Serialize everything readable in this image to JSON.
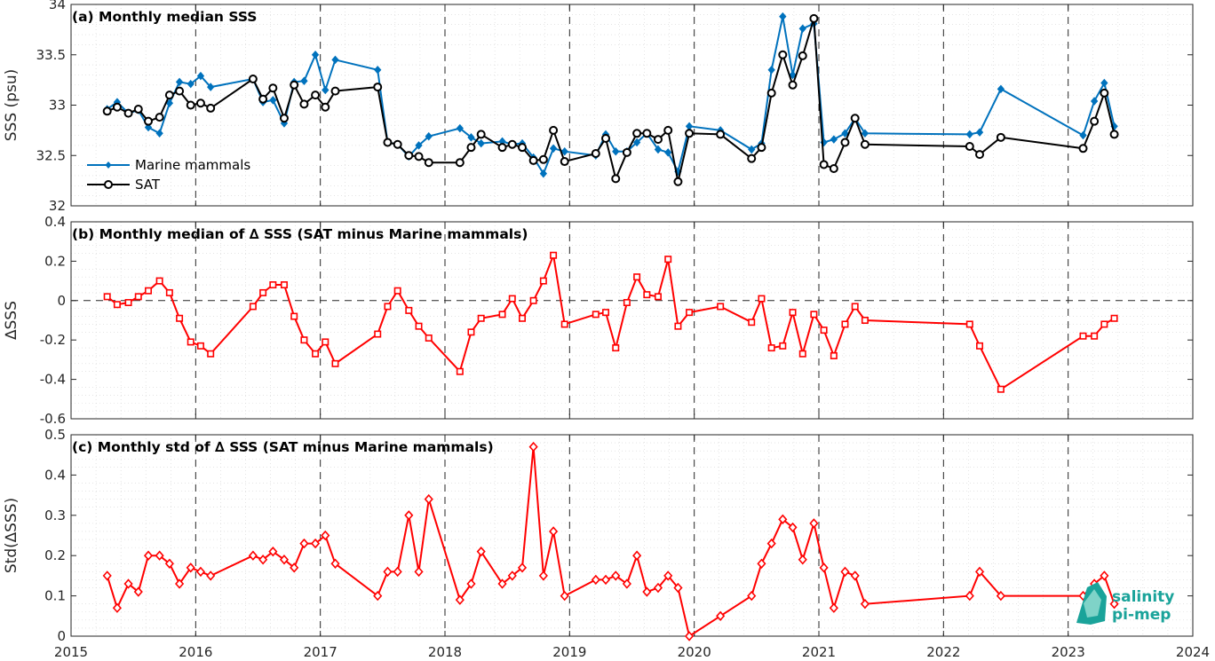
{
  "chart_data": [
    {
      "type": "line",
      "title": "(a) Monthly median SSS",
      "ylabel": "SSS (psu)",
      "xlim": [
        2015,
        2024
      ],
      "ylim": [
        32,
        34
      ],
      "xticks": [
        "2015",
        "2016",
        "2017",
        "2018",
        "2019",
        "2020",
        "2021",
        "2022",
        "2023",
        "2024"
      ],
      "yticks": [
        "32",
        "32.5",
        "33",
        "33.5",
        "34"
      ],
      "grid": true,
      "legend": "left",
      "x": [
        2015.29,
        2015.37,
        2015.46,
        2015.54,
        2015.62,
        2015.71,
        2015.79,
        2015.87,
        2015.96,
        2016.04,
        2016.12,
        2016.46,
        2016.54,
        2016.62,
        2016.71,
        2016.79,
        2016.87,
        2016.96,
        2017.04,
        2017.12,
        2017.46,
        2017.54,
        2017.62,
        2017.71,
        2017.79,
        2017.87,
        2018.12,
        2018.21,
        2018.29,
        2018.46,
        2018.54,
        2018.62,
        2018.71,
        2018.79,
        2018.87,
        2018.96,
        2019.21,
        2019.29,
        2019.37,
        2019.46,
        2019.54,
        2019.62,
        2019.71,
        2019.79,
        2019.87,
        2019.96,
        2020.21,
        2020.46,
        2020.54,
        2020.62,
        2020.71,
        2020.79,
        2020.87,
        2020.96,
        2021.04,
        2021.12,
        2021.21,
        2021.29,
        2021.37,
        2022.21,
        2022.29,
        2022.46,
        2023.12,
        2023.21,
        2023.29,
        2023.37
      ],
      "series": [
        {
          "name": "Marine mammals",
          "color": "#0072bd",
          "marker": "diamond",
          "values": [
            32.96,
            33.03,
            32.92,
            32.95,
            32.78,
            32.72,
            33.02,
            33.23,
            33.21,
            33.29,
            33.18,
            33.26,
            33.03,
            33.05,
            32.82,
            33.23,
            33.24,
            33.5,
            33.15,
            33.45,
            33.35,
            32.63,
            32.61,
            32.49,
            32.6,
            32.69,
            32.77,
            32.68,
            32.62,
            32.64,
            32.61,
            32.62,
            32.48,
            32.32,
            32.57,
            32.54,
            32.5,
            32.71,
            32.54,
            32.54,
            32.63,
            32.72,
            32.56,
            32.53,
            32.34,
            32.79,
            32.75,
            32.56,
            32.62,
            33.35,
            33.88,
            33.3,
            33.76,
            33.81,
            32.63,
            32.66,
            32.72,
            32.87,
            32.72,
            32.71,
            32.73,
            33.16,
            32.7,
            33.04,
            33.22,
            32.79
          ]
        },
        {
          "name": "SAT",
          "color": "#000000",
          "marker": "circle",
          "values": [
            32.94,
            32.98,
            32.92,
            32.96,
            32.84,
            32.88,
            33.1,
            33.14,
            33.0,
            33.02,
            32.97,
            33.26,
            33.06,
            33.17,
            32.87,
            33.2,
            33.01,
            33.1,
            32.98,
            33.14,
            33.18,
            32.63,
            32.61,
            32.5,
            32.49,
            32.43,
            32.43,
            32.58,
            32.71,
            32.58,
            32.61,
            32.58,
            32.45,
            32.46,
            32.75,
            32.44,
            32.52,
            32.67,
            32.27,
            32.53,
            32.72,
            32.72,
            32.66,
            32.75,
            32.24,
            32.72,
            32.71,
            32.47,
            32.58,
            33.12,
            33.5,
            33.2,
            33.49,
            33.86,
            32.41,
            32.37,
            32.63,
            32.87,
            32.61,
            32.59,
            32.51,
            32.68,
            32.57,
            32.84,
            33.12,
            32.71
          ]
        }
      ]
    },
    {
      "type": "line",
      "title": "(b) Monthly median of ∆ SSS (SAT minus Marine mammals)",
      "ylabel": "∆SSS",
      "xlim": [
        2015,
        2024
      ],
      "ylim": [
        -0.6,
        0.4
      ],
      "xticks": [
        "2015",
        "2016",
        "2017",
        "2018",
        "2019",
        "2020",
        "2021",
        "2022",
        "2023",
        "2024"
      ],
      "yticks": [
        "-0.6",
        "-0.4",
        "-0.2",
        "0",
        "0.2",
        "0.4"
      ],
      "grid": true,
      "reference_line": 0,
      "x": [
        2015.29,
        2015.37,
        2015.46,
        2015.54,
        2015.62,
        2015.71,
        2015.79,
        2015.87,
        2015.96,
        2016.04,
        2016.12,
        2016.46,
        2016.54,
        2016.62,
        2016.71,
        2016.79,
        2016.87,
        2016.96,
        2017.04,
        2017.12,
        2017.46,
        2017.54,
        2017.62,
        2017.71,
        2017.79,
        2017.87,
        2018.12,
        2018.21,
        2018.29,
        2018.46,
        2018.54,
        2018.62,
        2018.71,
        2018.79,
        2018.87,
        2018.96,
        2019.21,
        2019.29,
        2019.37,
        2019.46,
        2019.54,
        2019.62,
        2019.71,
        2019.79,
        2019.87,
        2019.96,
        2020.21,
        2020.46,
        2020.54,
        2020.62,
        2020.71,
        2020.79,
        2020.87,
        2020.96,
        2021.04,
        2021.12,
        2021.21,
        2021.29,
        2021.37,
        2022.21,
        2022.29,
        2022.46,
        2023.12,
        2023.21,
        2023.29,
        2023.37
      ],
      "series": [
        {
          "color": "#ff0000",
          "marker": "square",
          "values": [
            0.02,
            -0.02,
            -0.01,
            0.02,
            0.05,
            0.1,
            0.04,
            -0.09,
            -0.21,
            -0.23,
            -0.27,
            -0.03,
            0.04,
            0.08,
            0.08,
            -0.08,
            -0.2,
            -0.27,
            -0.21,
            -0.32,
            -0.17,
            -0.03,
            0.05,
            -0.05,
            -0.13,
            -0.19,
            -0.36,
            -0.16,
            -0.09,
            -0.07,
            0.01,
            -0.09,
            0.0,
            0.1,
            0.23,
            -0.12,
            -0.07,
            -0.06,
            -0.24,
            -0.01,
            0.12,
            0.03,
            0.02,
            0.21,
            -0.13,
            -0.06,
            -0.03,
            -0.11,
            0.01,
            -0.24,
            -0.23,
            -0.06,
            -0.27,
            -0.07,
            -0.15,
            -0.28,
            -0.12,
            -0.03,
            -0.1,
            -0.12,
            -0.23,
            -0.45,
            -0.18,
            -0.18,
            -0.12,
            -0.09
          ]
        }
      ]
    },
    {
      "type": "line",
      "title": "(c) Monthly std of ∆ SSS (SAT minus Marine mammals)",
      "ylabel": "Std(∆SSS)",
      "xlim": [
        2015,
        2024
      ],
      "ylim": [
        0,
        0.5
      ],
      "xticks": [
        "2015",
        "2016",
        "2017",
        "2018",
        "2019",
        "2020",
        "2021",
        "2022",
        "2023",
        "2024"
      ],
      "yticks": [
        "0",
        "0.1",
        "0.2",
        "0.3",
        "0.4",
        "0.5"
      ],
      "grid": true,
      "x": [
        2015.29,
        2015.37,
        2015.46,
        2015.54,
        2015.62,
        2015.71,
        2015.79,
        2015.87,
        2015.96,
        2016.04,
        2016.12,
        2016.46,
        2016.54,
        2016.62,
        2016.71,
        2016.79,
        2016.87,
        2016.96,
        2017.04,
        2017.12,
        2017.46,
        2017.54,
        2017.62,
        2017.71,
        2017.79,
        2017.87,
        2018.12,
        2018.21,
        2018.29,
        2018.46,
        2018.54,
        2018.62,
        2018.71,
        2018.79,
        2018.87,
        2018.96,
        2019.21,
        2019.29,
        2019.37,
        2019.46,
        2019.54,
        2019.62,
        2019.71,
        2019.79,
        2019.87,
        2019.96,
        2020.21,
        2020.46,
        2020.54,
        2020.62,
        2020.71,
        2020.79,
        2020.87,
        2020.96,
        2021.04,
        2021.12,
        2021.21,
        2021.29,
        2021.37,
        2022.21,
        2022.29,
        2022.46,
        2023.12,
        2023.21,
        2023.29,
        2023.37
      ],
      "series": [
        {
          "color": "#ff0000",
          "marker": "diamond",
          "values": [
            0.15,
            0.07,
            0.13,
            0.11,
            0.2,
            0.2,
            0.18,
            0.13,
            0.17,
            0.16,
            0.15,
            0.2,
            0.19,
            0.21,
            0.19,
            0.17,
            0.23,
            0.23,
            0.25,
            0.18,
            0.1,
            0.16,
            0.16,
            0.3,
            0.16,
            0.34,
            0.09,
            0.13,
            0.21,
            0.13,
            0.15,
            0.17,
            0.47,
            0.15,
            0.26,
            0.1,
            0.14,
            0.14,
            0.15,
            0.13,
            0.2,
            0.11,
            0.12,
            0.15,
            0.12,
            0.0,
            0.05,
            0.1,
            0.18,
            0.23,
            0.29,
            0.27,
            0.19,
            0.28,
            0.17,
            0.07,
            0.16,
            0.15,
            0.08,
            0.1,
            0.16,
            0.1,
            0.1,
            0.13,
            0.15,
            0.08
          ]
        }
      ]
    }
  ],
  "logo": {
    "line1": "salinity",
    "line2": "pi-mep",
    "color": "#1aa39a"
  }
}
